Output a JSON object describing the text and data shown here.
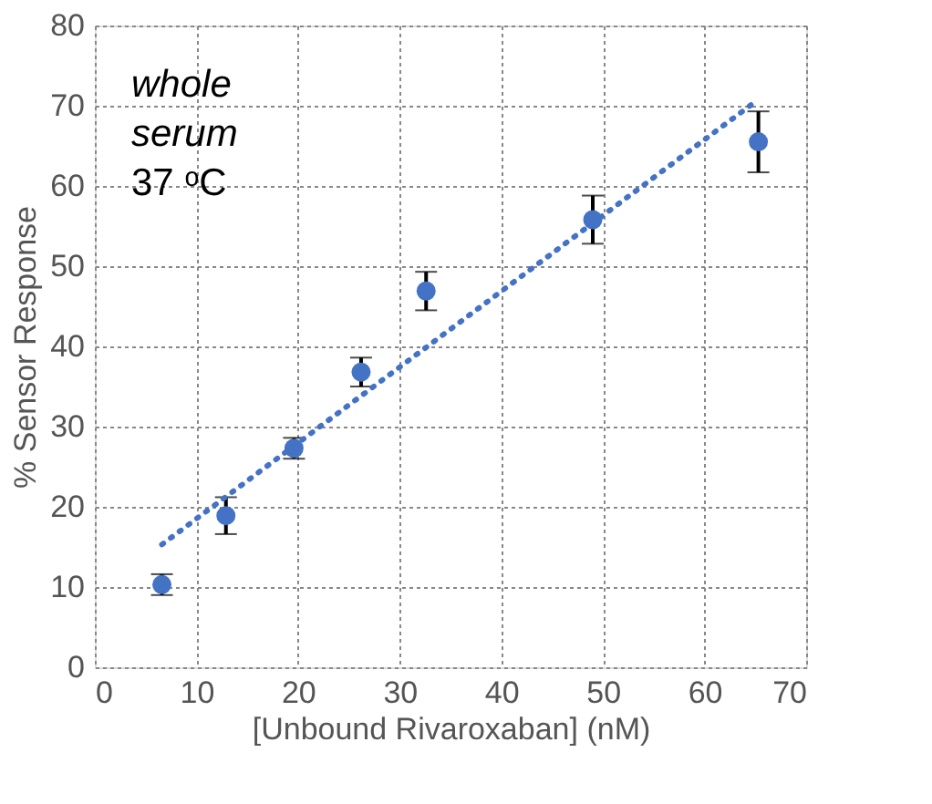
{
  "chart_data": {
    "type": "scatter",
    "xlabel": "[Unbound Rivaroxaban] (nM)",
    "ylabel": "% Sensor Response",
    "x": [
      6.6,
      12.9,
      19.6,
      26.2,
      32.6,
      49.0,
      65.3
    ],
    "series": [
      {
        "color": "#4472c4",
        "marker": "circle",
        "values": [
          10.3,
          18.9,
          27.3,
          36.8,
          46.9,
          55.8,
          65.5
        ],
        "errors": [
          1.3,
          2.3,
          1.3,
          1.8,
          2.4,
          3.0,
          3.8
        ]
      },
      {
        "type": "line",
        "color": "#4472c4",
        "line_style": "dotted",
        "x": [
          6.6,
          65.0
        ],
        "values": [
          15.3,
          70.5
        ]
      }
    ],
    "xlim": [
      0,
      70
    ],
    "xticks": [
      0,
      10,
      20,
      30,
      40,
      50,
      60,
      70
    ],
    "ylim": [
      0,
      80
    ],
    "yticks": [
      0,
      10,
      20,
      30,
      40,
      50,
      60,
      70,
      80
    ],
    "grid": true,
    "annotations": [
      "whole serum",
      "37 ᵒC"
    ]
  }
}
